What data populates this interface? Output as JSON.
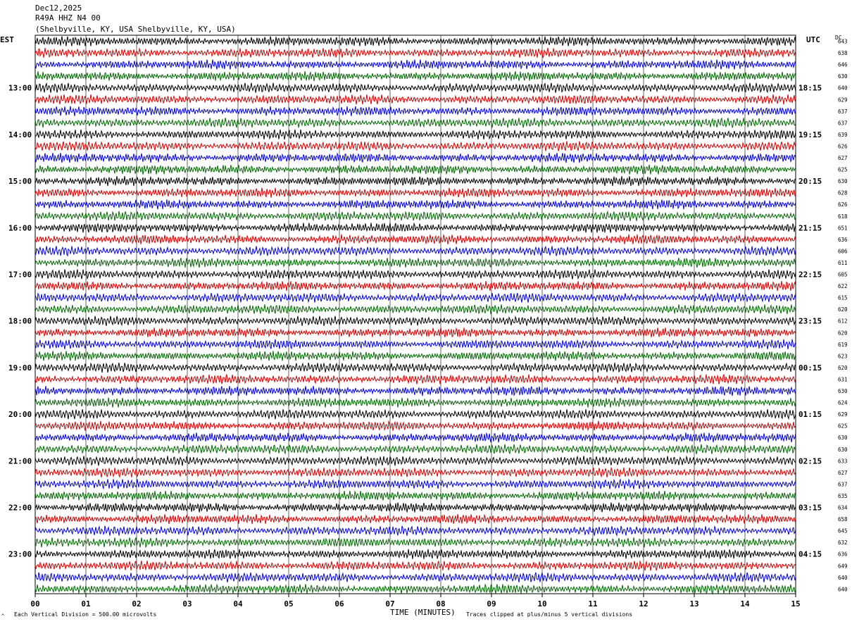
{
  "header": {
    "date": "Dec12,2025",
    "station": "R49A HHZ N4 00",
    "location": "(Shelbyville, KY, USA Shelbyville, KY, USA)"
  },
  "axes": {
    "left_timezone": "EST",
    "right_timezone": "UTC",
    "dc_label": "DC",
    "xlabel": "TIME (MINUTES)"
  },
  "footer": {
    "mark": "^",
    "scale_note": "Each Vertical Division =  500.00 microvolts",
    "clip_note": "Traces clipped at plus/minus 5 vertical divisions"
  },
  "colors": {
    "trace_cycle": [
      "#000000",
      "#cc0000",
      "#0000cc",
      "#006600"
    ],
    "grid": "#000000",
    "background": "#ffffff"
  },
  "chart_data": {
    "type": "line",
    "title": "",
    "xlabel": "TIME (MINUTES)",
    "ylabel": "",
    "xlim": [
      0,
      15
    ],
    "x_ticks": [
      "00",
      "01",
      "02",
      "03",
      "04",
      "05",
      "06",
      "07",
      "08",
      "09",
      "10",
      "11",
      "12",
      "13",
      "14",
      "15"
    ],
    "grid": true,
    "trace_interval_minutes": 15,
    "trace_count": 48,
    "left_time_labels": [
      {
        "trace": 4,
        "label": "13:00"
      },
      {
        "trace": 8,
        "label": "14:00"
      },
      {
        "trace": 12,
        "label": "15:00"
      },
      {
        "trace": 16,
        "label": "16:00"
      },
      {
        "trace": 20,
        "label": "17:00"
      },
      {
        "trace": 24,
        "label": "18:00"
      },
      {
        "trace": 28,
        "label": "19:00"
      },
      {
        "trace": 32,
        "label": "20:00"
      },
      {
        "trace": 36,
        "label": "21:00"
      },
      {
        "trace": 40,
        "label": "22:00"
      },
      {
        "trace": 44,
        "label": "23:00"
      }
    ],
    "right_time_labels": [
      {
        "trace": 4,
        "label": "18:15"
      },
      {
        "trace": 8,
        "label": "19:15"
      },
      {
        "trace": 12,
        "label": "20:15"
      },
      {
        "trace": 16,
        "label": "21:15"
      },
      {
        "trace": 20,
        "label": "22:15"
      },
      {
        "trace": 24,
        "label": "23:15"
      },
      {
        "trace": 28,
        "label": "00:15"
      },
      {
        "trace": 32,
        "label": "01:15"
      },
      {
        "trace": 36,
        "label": "02:15"
      },
      {
        "trace": 40,
        "label": "03:15"
      },
      {
        "trace": 44,
        "label": "04:15"
      }
    ],
    "dc_offsets": [
      "643",
      "638",
      "646",
      "630",
      "640",
      "629",
      "637",
      "637",
      "639",
      "626",
      "627",
      "625",
      "630",
      "628",
      "626",
      "618",
      "651",
      "636",
      "606",
      "611",
      "605",
      "622",
      "615",
      "620",
      "612",
      "620",
      "619",
      "623",
      "620",
      "631",
      "630",
      "624",
      "629",
      "625",
      "630",
      "630",
      "633",
      "627",
      "637",
      "635",
      "634",
      "658",
      "645",
      "632",
      "636",
      "649",
      "640",
      "640"
    ]
  }
}
